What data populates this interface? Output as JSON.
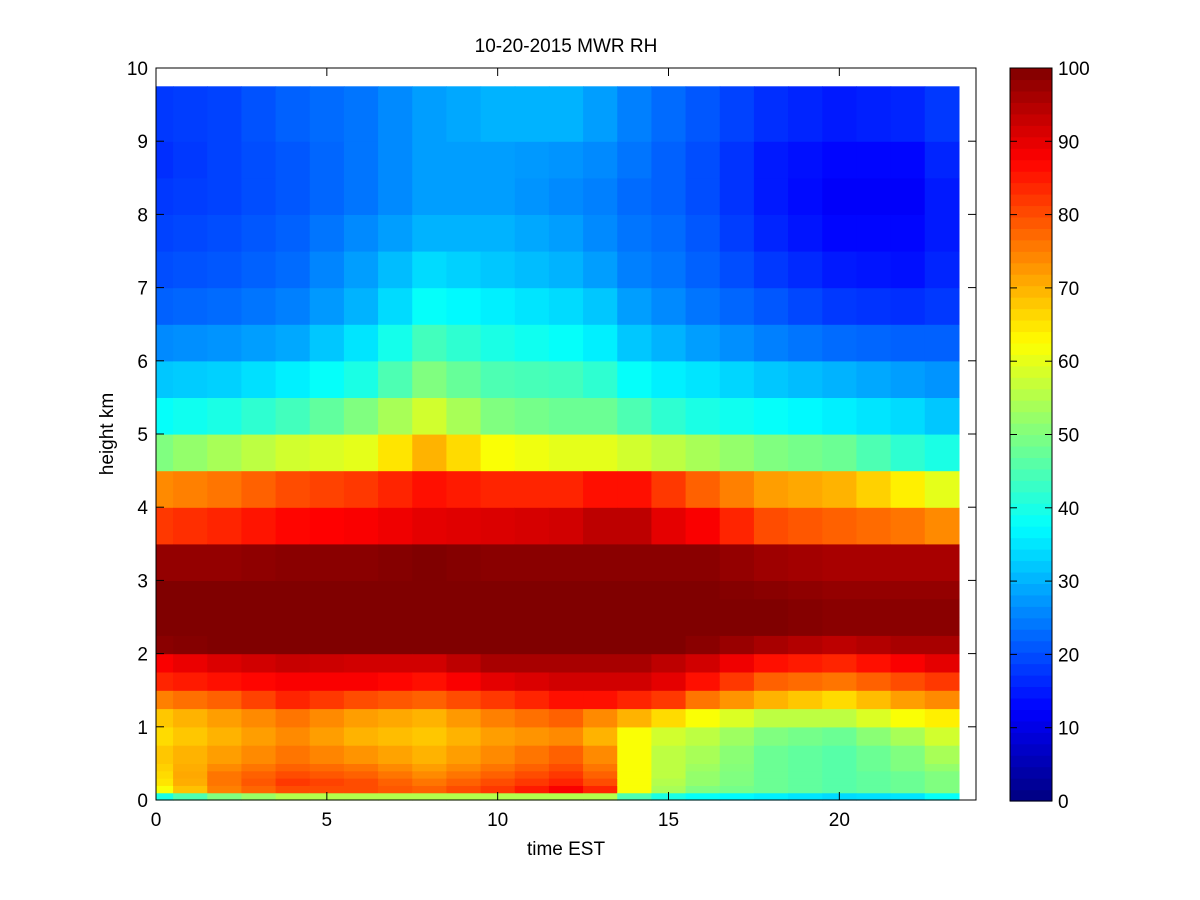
{
  "chart_data": {
    "type": "heatmap",
    "title": "10-20-2015 MWR RH",
    "xlabel": "time EST",
    "ylabel": "height km",
    "xlim": [
      0,
      24
    ],
    "ylim": [
      0,
      10
    ],
    "x_ticks": [
      0,
      5,
      10,
      15,
      20
    ],
    "y_ticks": [
      0,
      1,
      2,
      3,
      4,
      5,
      6,
      7,
      8,
      9,
      10
    ],
    "colorbar": {
      "colormap": "jet",
      "range": [
        0,
        100
      ],
      "ticks": [
        0,
        10,
        20,
        30,
        40,
        50,
        60,
        70,
        80,
        90,
        100
      ]
    },
    "grid": false,
    "time_bins": [
      0,
      1,
      2,
      3,
      4,
      5,
      6,
      7,
      8,
      9,
      10,
      11,
      12,
      13,
      14,
      15,
      16,
      17,
      18,
      19,
      20,
      21,
      22,
      23
    ],
    "time_bin_width": 1,
    "height_levels": [
      0.0,
      0.1,
      0.2,
      0.3,
      0.4,
      0.5,
      0.75,
      1.0,
      1.25,
      1.5,
      1.75,
      2.0,
      2.25,
      2.5,
      2.75,
      3.0,
      3.5,
      4.0,
      4.5,
      5.0,
      5.5,
      6.0,
      6.5,
      7.0,
      7.5,
      8.0,
      8.5,
      9.0,
      9.75
    ],
    "rh_anchor_profiles": [
      {
        "hour": 0,
        "rh": [
          40,
          62,
          65,
          66,
          67,
          68,
          66,
          68,
          75,
          84,
          88,
          99,
          100,
          100,
          100,
          98,
          82,
          74,
          50,
          38,
          32,
          26,
          22,
          20,
          19,
          18,
          17,
          18
        ]
      },
      {
        "hour": 2,
        "rh": [
          50,
          75,
          76,
          76,
          74,
          72,
          70,
          72,
          78,
          86,
          91,
          100,
          100,
          100,
          100,
          98,
          84,
          76,
          54,
          40,
          33,
          27,
          23,
          21,
          20,
          19,
          19,
          19
        ]
      },
      {
        "hour": 4,
        "rh": [
          55,
          80,
          82,
          80,
          78,
          76,
          74,
          76,
          84,
          88,
          93,
          100,
          100,
          100,
          100,
          99,
          87,
          80,
          58,
          44,
          36,
          29,
          25,
          23,
          22,
          21,
          21,
          22
        ]
      },
      {
        "hour": 6,
        "rh": [
          55,
          80,
          80,
          78,
          76,
          73,
          70,
          72,
          80,
          88,
          92,
          100,
          100,
          100,
          100,
          99,
          88,
          82,
          60,
          50,
          40,
          35,
          30,
          28,
          26,
          24,
          24,
          24
        ]
      },
      {
        "hour": 8,
        "rh": [
          55,
          78,
          76,
          74,
          72,
          70,
          68,
          70,
          78,
          86,
          92,
          100,
          100,
          100,
          100,
          100,
          90,
          86,
          70,
          58,
          50,
          44,
          38,
          34,
          30,
          28,
          28,
          28
        ]
      },
      {
        "hour": 10,
        "rh": [
          55,
          82,
          80,
          78,
          76,
          74,
          72,
          75,
          82,
          90,
          96,
          100,
          100,
          100,
          100,
          99,
          91,
          84,
          62,
          50,
          45,
          40,
          36,
          32,
          30,
          28,
          28,
          30
        ]
      },
      {
        "hour": 12,
        "rh": [
          55,
          88,
          84,
          82,
          80,
          78,
          74,
          78,
          86,
          92,
          96,
          100,
          100,
          100,
          100,
          99,
          92,
          84,
          60,
          48,
          44,
          38,
          34,
          30,
          28,
          26,
          27,
          30
        ]
      },
      {
        "hour": 13,
        "rh": [
          55,
          84,
          80,
          78,
          76,
          74,
          70,
          74,
          86,
          92,
          96,
          100,
          100,
          100,
          100,
          99,
          94,
          86,
          60,
          48,
          42,
          36,
          32,
          28,
          26,
          25,
          26,
          28
        ]
      },
      {
        "hour": 14,
        "rh": [
          45,
          62,
          62,
          62,
          62,
          62,
          62,
          70,
          84,
          92,
          96,
          100,
          100,
          100,
          100,
          99,
          94,
          86,
          58,
          45,
          38,
          32,
          28,
          25,
          24,
          23,
          24,
          25
        ]
      },
      {
        "hour": 15,
        "rh": [
          40,
          54,
          55,
          56,
          56,
          56,
          58,
          66,
          82,
          90,
          94,
          100,
          100,
          100,
          100,
          99,
          90,
          82,
          56,
          42,
          36,
          30,
          26,
          24,
          23,
          22,
          22,
          23
        ]
      },
      {
        "hour": 16,
        "rh": [
          38,
          50,
          52,
          52,
          53,
          54,
          56,
          62,
          76,
          86,
          92,
          99,
          100,
          100,
          100,
          99,
          88,
          78,
          54,
          40,
          35,
          28,
          24,
          22,
          21,
          20,
          20,
          21
        ]
      },
      {
        "hour": 18,
        "rh": [
          36,
          48,
          48,
          48,
          48,
          48,
          50,
          56,
          70,
          78,
          86,
          96,
          100,
          100,
          99,
          97,
          80,
          72,
          50,
          38,
          32,
          25,
          21,
          18,
          16,
          15,
          15,
          17
        ]
      },
      {
        "hour": 20,
        "rh": [
          34,
          46,
          46,
          46,
          46,
          46,
          48,
          56,
          66,
          76,
          84,
          94,
          99,
          99,
          98,
          96,
          78,
          70,
          48,
          36,
          30,
          23,
          18,
          15,
          13,
          12,
          13,
          15
        ]
      },
      {
        "hour": 22,
        "rh": [
          35,
          48,
          48,
          48,
          50,
          50,
          54,
          62,
          72,
          80,
          88,
          96,
          99,
          99,
          98,
          96,
          76,
          64,
          42,
          34,
          28,
          22,
          17,
          14,
          13,
          12,
          13,
          16
        ]
      },
      {
        "hour": 23,
        "rh": [
          38,
          50,
          50,
          50,
          52,
          54,
          58,
          64,
          74,
          82,
          90,
          96,
          99,
          99,
          98,
          96,
          74,
          60,
          40,
          32,
          27,
          22,
          18,
          16,
          15,
          15,
          16,
          18
        ]
      }
    ]
  }
}
